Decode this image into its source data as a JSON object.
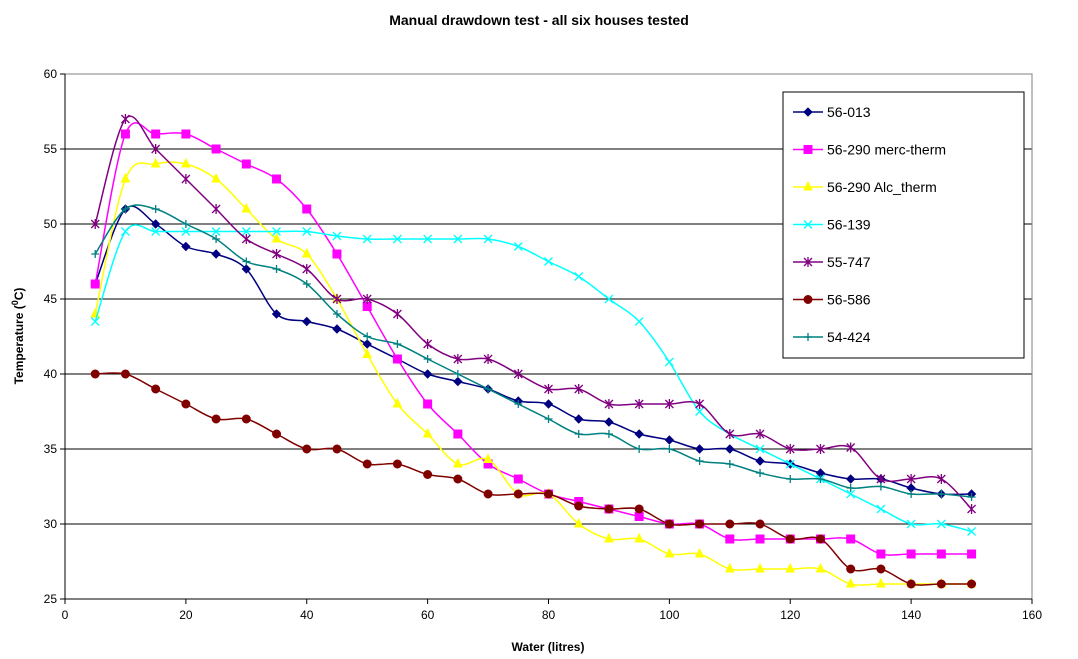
{
  "chart_data": {
    "type": "line",
    "title": "Manual drawdown test - all six houses tested",
    "xlabel": "Water (litres)",
    "ylabel_main": "Temperature (",
    "ylabel_sup": "0",
    "ylabel_tail": "C)",
    "xlim": [
      0,
      160
    ],
    "ylim": [
      25,
      60
    ],
    "xticks": [
      0,
      20,
      40,
      60,
      80,
      100,
      120,
      140,
      160
    ],
    "yticks": [
      25,
      30,
      35,
      40,
      45,
      50,
      55,
      60
    ],
    "grid": "horizontal",
    "legend_position": "top-right",
    "x": [
      5,
      10,
      15,
      20,
      25,
      30,
      35,
      40,
      45,
      50,
      55,
      60,
      65,
      70,
      75,
      80,
      85,
      90,
      95,
      100,
      105,
      110,
      115,
      120,
      125,
      130,
      135,
      140,
      145,
      150
    ],
    "series": [
      {
        "name": "56-013",
        "color": "#000080",
        "marker": "diamond",
        "values": [
          46,
          51,
          50,
          48.5,
          48,
          47,
          44,
          43.5,
          43,
          42,
          41,
          40,
          39.5,
          39,
          38.2,
          38,
          37,
          36.8,
          36,
          35.6,
          35,
          35,
          34.2,
          34,
          33.4,
          33,
          33,
          32.4,
          32,
          32
        ]
      },
      {
        "name": "56-290 merc-therm",
        "color": "#FF00FF",
        "marker": "square",
        "values": [
          46,
          56,
          56,
          56,
          55,
          54,
          53,
          51,
          48,
          44.5,
          41,
          38,
          36,
          34,
          33,
          32,
          31.5,
          31,
          30.5,
          30,
          30,
          29,
          29,
          29,
          29,
          29,
          28,
          28,
          28,
          28
        ]
      },
      {
        "name": "56-290 Alc_therm",
        "color": "#FFFF00",
        "marker": "triangle",
        "values": [
          44,
          53,
          54,
          54,
          53,
          51,
          49,
          48,
          45,
          41.3,
          38,
          36,
          34,
          34.3,
          32,
          32,
          30,
          29,
          29,
          28,
          28,
          27,
          27,
          27,
          27,
          26,
          26,
          26,
          26,
          26
        ]
      },
      {
        "name": "56-139",
        "color": "#00FFFF",
        "marker": "x",
        "values": [
          43.5,
          49.5,
          49.5,
          49.5,
          49.5,
          49.5,
          49.5,
          49.5,
          49.2,
          49,
          49,
          49,
          49,
          49,
          48.5,
          47.5,
          46.5,
          45,
          43.5,
          40.8,
          37.5,
          36,
          35,
          34,
          33,
          32,
          31,
          30,
          30,
          29.5
        ]
      },
      {
        "name": "55-747",
        "color": "#800080",
        "marker": "star",
        "values": [
          50,
          57,
          55,
          53,
          51,
          49,
          48,
          47,
          45,
          45,
          44,
          42,
          41,
          41,
          40,
          39,
          39,
          38,
          38,
          38,
          38,
          36,
          36,
          35,
          35,
          35.1,
          33,
          33,
          33,
          31
        ]
      },
      {
        "name": "56-586",
        "color": "#800000",
        "marker": "circle",
        "values": [
          40,
          40,
          39,
          38,
          37,
          37,
          36,
          35,
          35,
          34,
          34,
          33.3,
          33,
          32,
          32,
          32,
          31.2,
          31,
          31,
          30,
          30,
          30,
          30,
          29,
          29,
          27,
          27,
          26,
          26,
          26
        ]
      },
      {
        "name": "54-424",
        "color": "#008080",
        "marker": "plus",
        "values": [
          48,
          51,
          51,
          50,
          49,
          47.5,
          47,
          46,
          44,
          42.5,
          42,
          41,
          40,
          39,
          38,
          37,
          36,
          36,
          35,
          35,
          34.2,
          34,
          33.4,
          33,
          33,
          32.4,
          32.5,
          32,
          32,
          31.8
        ]
      }
    ]
  }
}
